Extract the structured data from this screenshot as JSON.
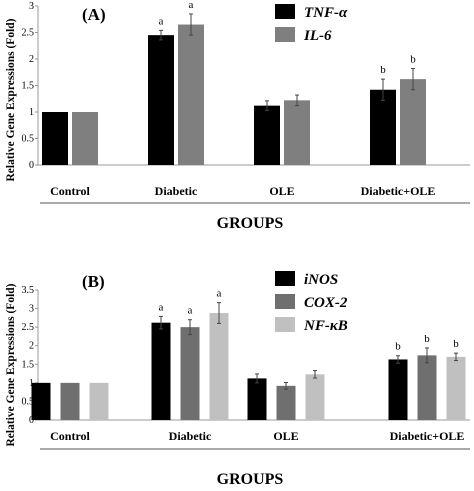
{
  "chart_data": [
    {
      "type": "bar",
      "panel_label": "(A)",
      "ylabel": "Relative Gene Expressions (Fold)",
      "xlabel": "GROUPS",
      "ylim": [
        0,
        3
      ],
      "yticks": [
        "0",
        "0.5",
        "1",
        "1.5",
        "2",
        "2.5",
        "3"
      ],
      "grid": false,
      "legend_position": "top-right",
      "categories": [
        "Control",
        "Diabetic",
        "OLE",
        "Diabetic+OLE"
      ],
      "series": [
        {
          "name": "TNF-α",
          "color": "#000000",
          "values": [
            1.0,
            2.45,
            1.12,
            1.42
          ],
          "errors": [
            0,
            0.09,
            0.09,
            0.2
          ],
          "labels": [
            "",
            "a",
            "",
            "b"
          ]
        },
        {
          "name": "IL-6",
          "color": "#7f7f7f",
          "values": [
            1.0,
            2.65,
            1.22,
            1.62
          ],
          "errors": [
            0,
            0.2,
            0.1,
            0.2
          ],
          "labels": [
            "",
            "a",
            "",
            "b"
          ]
        }
      ]
    },
    {
      "type": "bar",
      "panel_label": "(B)",
      "ylabel": "Relative Gene Expressions (Fold)",
      "xlabel": "GROUPS",
      "ylim": [
        0,
        3.5
      ],
      "yticks": [
        "0",
        "0.5",
        "1",
        "1.5",
        "2",
        "2.5",
        "3",
        "3.5"
      ],
      "grid": false,
      "legend_position": "top-right",
      "categories": [
        "Control",
        "Diabetic",
        "OLE",
        "Diabetic+OLE"
      ],
      "series": [
        {
          "name": "iNOS",
          "color": "#000000",
          "values": [
            1.0,
            2.62,
            1.12,
            1.63
          ],
          "errors": [
            0,
            0.17,
            0.12,
            0.1
          ],
          "labels": [
            "",
            "a",
            "",
            "b"
          ]
        },
        {
          "name": "COX-2",
          "color": "#6f6f6f",
          "values": [
            1.0,
            2.5,
            0.92,
            1.74
          ],
          "errors": [
            0,
            0.2,
            0.09,
            0.2
          ],
          "labels": [
            "",
            "a",
            "",
            "b"
          ]
        },
        {
          "name": "NF-κB",
          "color": "#c0c0c0",
          "values": [
            1.0,
            2.88,
            1.23,
            1.7
          ],
          "errors": [
            0,
            0.28,
            0.1,
            0.1
          ],
          "labels": [
            "",
            "a",
            "",
            "b"
          ]
        }
      ]
    }
  ]
}
